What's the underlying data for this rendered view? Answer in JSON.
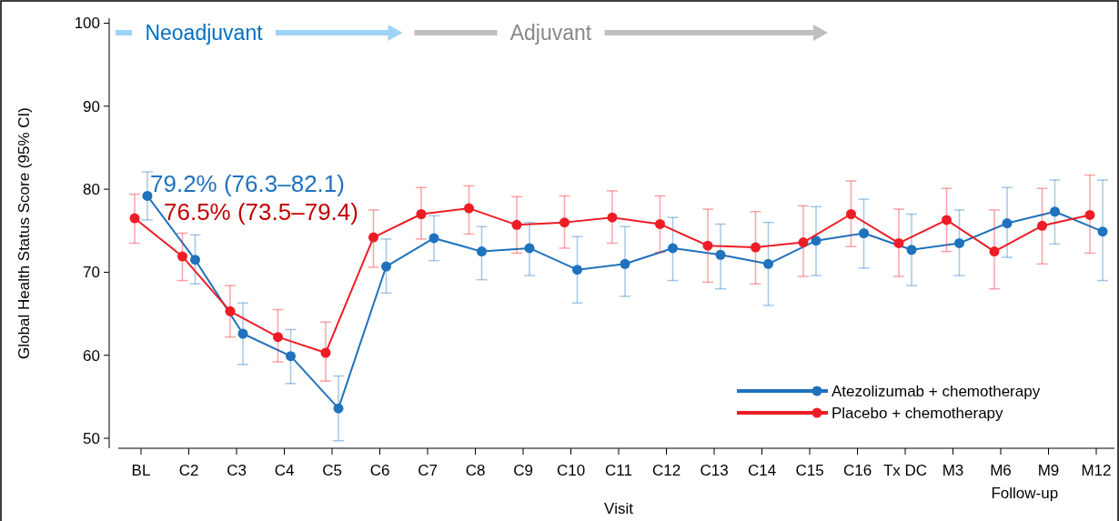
{
  "chart_data": {
    "type": "line",
    "ylabel": "Global Health Status Score (95% CI)",
    "xlabel": "Visit",
    "categories": [
      "BL",
      "C2",
      "C3",
      "C4",
      "C5",
      "C6",
      "C7",
      "C8",
      "C9",
      "C10",
      "C11",
      "C12",
      "C13",
      "C14",
      "C15",
      "C16",
      "Tx DC",
      "M3",
      "M6",
      "M9",
      "M12"
    ],
    "ylim": [
      48.8,
      100.6
    ],
    "yticks": [
      50,
      60,
      70,
      80,
      90,
      100
    ],
    "grid": false,
    "legend": "bottom right",
    "marker": "circle",
    "line_style": "solid",
    "series": [
      {
        "name": "Atezolizumab + chemotherapy",
        "color": "#1f72bd",
        "values": [
          79.2,
          71.5,
          62.6,
          59.9,
          53.6,
          70.7,
          74.1,
          72.5,
          72.9,
          70.3,
          71.0,
          72.9,
          72.1,
          71.0,
          73.8,
          74.7,
          72.7,
          73.5,
          75.9,
          77.3,
          74.9
        ],
        "errors": [
          [
            76.3,
            82.1
          ],
          [
            68.6,
            74.5
          ],
          [
            58.9,
            66.3
          ],
          [
            56.6,
            63.1
          ],
          [
            49.7,
            57.5
          ],
          [
            67.5,
            74.0
          ],
          [
            71.4,
            76.8
          ],
          [
            69.1,
            75.5
          ],
          [
            69.6,
            76.0
          ],
          [
            66.3,
            74.3
          ],
          [
            67.1,
            75.5
          ],
          [
            69.0,
            76.6
          ],
          [
            68.0,
            75.8
          ],
          [
            66.0,
            76.0
          ],
          [
            69.6,
            77.9
          ],
          [
            70.5,
            78.8
          ],
          [
            68.4,
            77.0
          ],
          [
            69.6,
            77.5
          ],
          [
            71.8,
            80.2
          ],
          [
            73.4,
            81.1
          ],
          [
            69.0,
            81.1
          ]
        ]
      },
      {
        "name": "Placebo + chemotherapy",
        "color": "#ee1c25",
        "values": [
          76.5,
          71.9,
          65.3,
          62.2,
          60.3,
          74.2,
          77.0,
          77.7,
          75.7,
          76.0,
          76.6,
          75.8,
          73.2,
          73.0,
          73.6,
          77.0,
          73.5,
          76.3,
          72.5,
          75.6,
          76.9
        ],
        "errors": [
          [
            73.5,
            79.4
          ],
          [
            69.0,
            74.7
          ],
          [
            62.2,
            68.4
          ],
          [
            59.2,
            65.5
          ],
          [
            56.9,
            64.0
          ],
          [
            70.6,
            77.5
          ],
          [
            74.0,
            80.2
          ],
          [
            74.6,
            80.4
          ],
          [
            72.3,
            79.1
          ],
          [
            72.9,
            79.2
          ],
          [
            73.5,
            79.8
          ],
          [
            72.4,
            79.2
          ],
          [
            68.8,
            77.6
          ],
          [
            68.6,
            77.3
          ],
          [
            69.5,
            78.0
          ],
          [
            73.1,
            81.0
          ],
          [
            69.5,
            77.6
          ],
          [
            72.5,
            80.1
          ],
          [
            68.0,
            77.5
          ],
          [
            71.0,
            80.1
          ],
          [
            72.3,
            81.7
          ]
        ]
      }
    ],
    "annotations": [
      {
        "text": "79.2% (76.3–82.1)",
        "x": "BL",
        "y": 79.2
      },
      {
        "text": "76.5% (73.5–79.4)",
        "x": "BL",
        "y": 76.5
      },
      "Neoadjuvant",
      "Adjuvant",
      "Follow-up"
    ]
  }
}
